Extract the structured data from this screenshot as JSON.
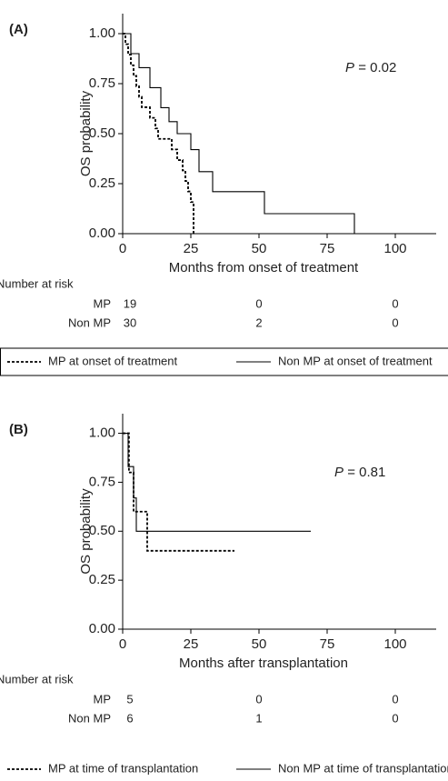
{
  "chart_data": [
    {
      "type": "step",
      "panel_label": "(A)",
      "y_label": "OS probability",
      "x_label": "Months from onset of treatment",
      "p_value": {
        "symbol": "P",
        "text": "= 0.02"
      },
      "xlim": [
        0,
        115
      ],
      "xticks": [
        0,
        25,
        50,
        75,
        100
      ],
      "ylim": [
        0,
        1.1
      ],
      "yticks": [
        {
          "value": 0,
          "label": "0.00"
        },
        {
          "value": 0.25,
          "label": "0.25"
        },
        {
          "value": 0.5,
          "label": "0.50"
        },
        {
          "value": 0.75,
          "label": "0.75"
        },
        {
          "value": 1,
          "label": "1.00"
        }
      ],
      "series": [
        {
          "name": "MP at onset of treatment",
          "color": "#000000",
          "dashed": true,
          "x": [
            0,
            1,
            2,
            3,
            4,
            5,
            6,
            7,
            10,
            12,
            13,
            18,
            20,
            22,
            23,
            24,
            25,
            26
          ],
          "values": [
            1,
            0.947,
            0.895,
            0.842,
            0.789,
            0.737,
            0.684,
            0.632,
            0.579,
            0.526,
            0.474,
            0.421,
            0.368,
            0.316,
            0.263,
            0.211,
            0.158,
            0
          ]
        },
        {
          "name": "Non MP at onset of treatment",
          "color": "#000000",
          "dashed": false,
          "x": [
            0,
            3,
            6,
            10,
            14,
            17,
            20,
            25,
            28,
            33,
            52,
            85
          ],
          "values": [
            1,
            0.9,
            0.83,
            0.73,
            0.63,
            0.56,
            0.5,
            0.42,
            0.31,
            0.21,
            0.1,
            0
          ]
        }
      ],
      "risk_table": {
        "title": "Number at risk",
        "rows": [
          {
            "label": "MP",
            "counts": [
              19,
              0,
              0
            ]
          },
          {
            "label": "Non MP",
            "counts": [
              30,
              2,
              0
            ]
          }
        ]
      }
    },
    {
      "type": "step",
      "panel_label": "(B)",
      "y_label": "OS probability",
      "x_label": "Months after transplantation",
      "p_value": {
        "symbol": "P",
        "text": "= 0.81"
      },
      "xlim": [
        0,
        115
      ],
      "xticks": [
        0,
        25,
        50,
        75,
        100
      ],
      "ylim": [
        0,
        1.1
      ],
      "yticks": [
        {
          "value": 0,
          "label": "0.00"
        },
        {
          "value": 0.25,
          "label": "0.25"
        },
        {
          "value": 0.5,
          "label": "0.50"
        },
        {
          "value": 0.75,
          "label": "0.75"
        },
        {
          "value": 1,
          "label": "1.00"
        }
      ],
      "series": [
        {
          "name": "MP at time of transplantation",
          "color": "#000000",
          "dashed": true,
          "x": [
            0,
            2.3,
            4,
            9,
            41
          ],
          "values": [
            1,
            0.8,
            0.6,
            0.4,
            0.4
          ]
        },
        {
          "name": "Non MP at time of transplantation",
          "color": "#000000",
          "dashed": false,
          "x": [
            0,
            2,
            4,
            5,
            69
          ],
          "values": [
            1,
            0.83,
            0.67,
            0.5,
            0.5
          ]
        }
      ],
      "risk_table": {
        "title": "Number at risk",
        "rows": [
          {
            "label": "MP",
            "counts": [
              5,
              0,
              0
            ]
          },
          {
            "label": "Non MP",
            "counts": [
              6,
              1,
              0
            ]
          }
        ]
      }
    }
  ]
}
